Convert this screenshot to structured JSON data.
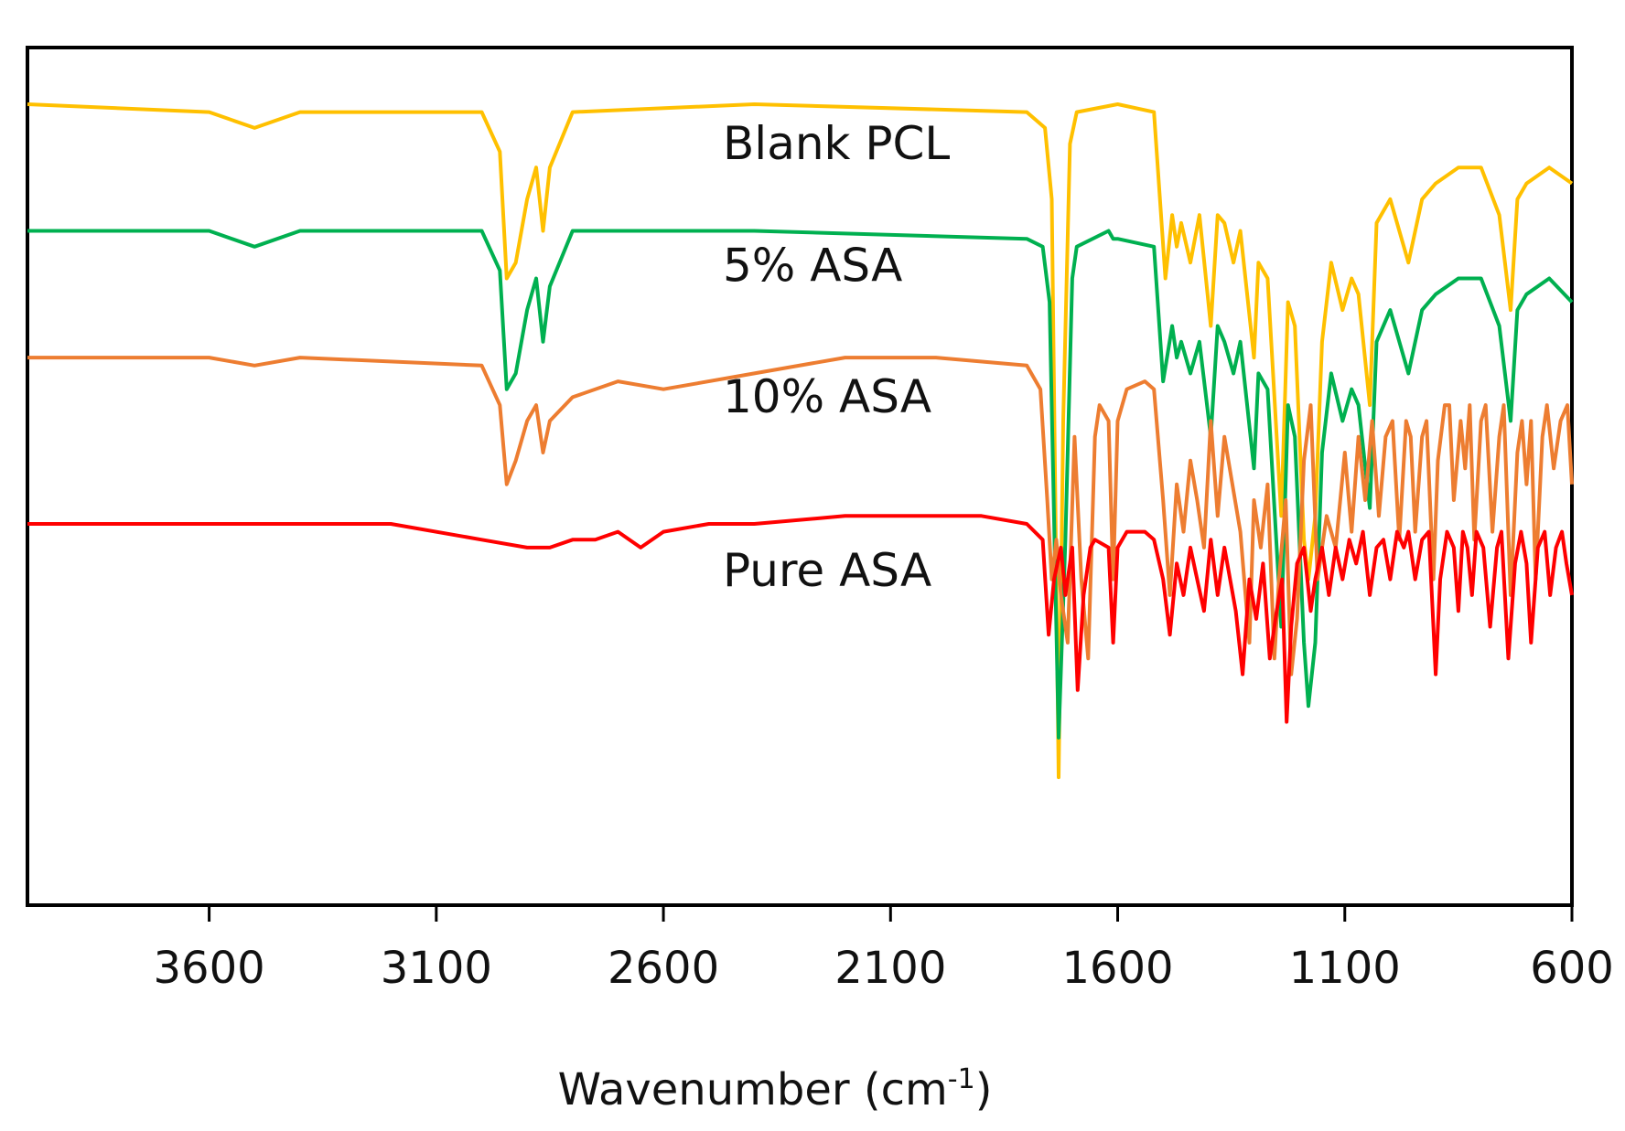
{
  "chart_data": {
    "type": "line",
    "title": "",
    "xlabel": "Wavenumber (cm",
    "xlabel_sup": "-1",
    "xlabel_close": ")",
    "ylabel": "",
    "xlim": [
      4000,
      600
    ],
    "x_reversed": true,
    "y_ticks_shown": false,
    "grid": false,
    "x_ticks": [
      3600,
      3100,
      2600,
      2100,
      1600,
      1100,
      600
    ],
    "legend": "inline labels beside each trace",
    "series": [
      {
        "name": "Blank PCL",
        "color": "#FFC000",
        "baseline": 100,
        "points": [
          [
            4000,
            100
          ],
          [
            3600,
            99
          ],
          [
            3500,
            97
          ],
          [
            3400,
            99
          ],
          [
            3000,
            99
          ],
          [
            2960,
            94
          ],
          [
            2945,
            78
          ],
          [
            2925,
            80
          ],
          [
            2900,
            88
          ],
          [
            2880,
            92
          ],
          [
            2865,
            84
          ],
          [
            2850,
            92
          ],
          [
            2800,
            99
          ],
          [
            2400,
            100
          ],
          [
            1800,
            99
          ],
          [
            1760,
            97
          ],
          [
            1745,
            88
          ],
          [
            1730,
            15
          ],
          [
            1720,
            60
          ],
          [
            1705,
            95
          ],
          [
            1690,
            99
          ],
          [
            1600,
            100
          ],
          [
            1520,
            99
          ],
          [
            1495,
            78
          ],
          [
            1480,
            86
          ],
          [
            1470,
            82
          ],
          [
            1460,
            85
          ],
          [
            1440,
            80
          ],
          [
            1420,
            86
          ],
          [
            1395,
            72
          ],
          [
            1380,
            86
          ],
          [
            1365,
            85
          ],
          [
            1345,
            80
          ],
          [
            1330,
            84
          ],
          [
            1300,
            68
          ],
          [
            1290,
            80
          ],
          [
            1270,
            78
          ],
          [
            1240,
            48
          ],
          [
            1225,
            75
          ],
          [
            1210,
            72
          ],
          [
            1190,
            45
          ],
          [
            1180,
            40
          ],
          [
            1165,
            48
          ],
          [
            1150,
            70
          ],
          [
            1130,
            80
          ],
          [
            1105,
            74
          ],
          [
            1085,
            78
          ],
          [
            1070,
            76
          ],
          [
            1045,
            62
          ],
          [
            1030,
            85
          ],
          [
            1000,
            88
          ],
          [
            960,
            80
          ],
          [
            930,
            88
          ],
          [
            900,
            90
          ],
          [
            850,
            92
          ],
          [
            800,
            92
          ],
          [
            760,
            86
          ],
          [
            735,
            74
          ],
          [
            720,
            88
          ],
          [
            700,
            90
          ],
          [
            650,
            92
          ],
          [
            600,
            90
          ]
        ]
      },
      {
        "name": "5% ASA",
        "color": "#00B050",
        "baseline": 84,
        "points": [
          [
            4000,
            84
          ],
          [
            3600,
            84
          ],
          [
            3500,
            82
          ],
          [
            3400,
            84
          ],
          [
            3000,
            84
          ],
          [
            2960,
            79
          ],
          [
            2945,
            64
          ],
          [
            2925,
            66
          ],
          [
            2900,
            74
          ],
          [
            2880,
            78
          ],
          [
            2865,
            70
          ],
          [
            2850,
            77
          ],
          [
            2800,
            84
          ],
          [
            2400,
            84
          ],
          [
            1800,
            83
          ],
          [
            1765,
            82
          ],
          [
            1750,
            75
          ],
          [
            1730,
            20
          ],
          [
            1715,
            45
          ],
          [
            1700,
            78
          ],
          [
            1690,
            82
          ],
          [
            1620,
            84
          ],
          [
            1610,
            83
          ],
          [
            1600,
            83
          ],
          [
            1520,
            82
          ],
          [
            1500,
            65
          ],
          [
            1480,
            72
          ],
          [
            1470,
            68
          ],
          [
            1460,
            70
          ],
          [
            1440,
            66
          ],
          [
            1420,
            70
          ],
          [
            1395,
            58
          ],
          [
            1380,
            72
          ],
          [
            1365,
            70
          ],
          [
            1345,
            66
          ],
          [
            1330,
            70
          ],
          [
            1300,
            54
          ],
          [
            1290,
            66
          ],
          [
            1270,
            64
          ],
          [
            1240,
            34
          ],
          [
            1225,
            62
          ],
          [
            1210,
            58
          ],
          [
            1190,
            32
          ],
          [
            1180,
            24
          ],
          [
            1165,
            32
          ],
          [
            1150,
            56
          ],
          [
            1130,
            66
          ],
          [
            1105,
            60
          ],
          [
            1085,
            64
          ],
          [
            1070,
            62
          ],
          [
            1045,
            49
          ],
          [
            1030,
            70
          ],
          [
            1000,
            74
          ],
          [
            960,
            66
          ],
          [
            930,
            74
          ],
          [
            900,
            76
          ],
          [
            850,
            78
          ],
          [
            800,
            78
          ],
          [
            760,
            72
          ],
          [
            735,
            60
          ],
          [
            720,
            74
          ],
          [
            700,
            76
          ],
          [
            650,
            78
          ],
          [
            600,
            75
          ]
        ]
      },
      {
        "name": "10% ASA",
        "color": "#ED7D31",
        "baseline": 68,
        "points": [
          [
            4000,
            68
          ],
          [
            3600,
            68
          ],
          [
            3500,
            67
          ],
          [
            3400,
            68
          ],
          [
            3000,
            67
          ],
          [
            2960,
            62
          ],
          [
            2945,
            52
          ],
          [
            2925,
            55
          ],
          [
            2900,
            60
          ],
          [
            2880,
            62
          ],
          [
            2865,
            56
          ],
          [
            2850,
            60
          ],
          [
            2800,
            63
          ],
          [
            2700,
            65
          ],
          [
            2600,
            64
          ],
          [
            2400,
            66
          ],
          [
            2200,
            68
          ],
          [
            2000,
            68
          ],
          [
            1800,
            67
          ],
          [
            1770,
            64
          ],
          [
            1755,
            50
          ],
          [
            1745,
            40
          ],
          [
            1735,
            45
          ],
          [
            1725,
            38
          ],
          [
            1710,
            32
          ],
          [
            1695,
            58
          ],
          [
            1680,
            40
          ],
          [
            1665,
            30
          ],
          [
            1650,
            58
          ],
          [
            1640,
            62
          ],
          [
            1620,
            60
          ],
          [
            1610,
            40
          ],
          [
            1600,
            60
          ],
          [
            1580,
            64
          ],
          [
            1540,
            65
          ],
          [
            1520,
            64
          ],
          [
            1500,
            50
          ],
          [
            1485,
            38
          ],
          [
            1470,
            52
          ],
          [
            1455,
            46
          ],
          [
            1440,
            55
          ],
          [
            1425,
            50
          ],
          [
            1410,
            44
          ],
          [
            1395,
            60
          ],
          [
            1380,
            48
          ],
          [
            1365,
            58
          ],
          [
            1330,
            46
          ],
          [
            1310,
            32
          ],
          [
            1300,
            50
          ],
          [
            1285,
            44
          ],
          [
            1270,
            52
          ],
          [
            1255,
            30
          ],
          [
            1245,
            40
          ],
          [
            1230,
            50
          ],
          [
            1218,
            28
          ],
          [
            1205,
            35
          ],
          [
            1190,
            55
          ],
          [
            1175,
            62
          ],
          [
            1160,
            40
          ],
          [
            1140,
            48
          ],
          [
            1120,
            44
          ],
          [
            1100,
            56
          ],
          [
            1085,
            46
          ],
          [
            1070,
            58
          ],
          [
            1055,
            50
          ],
          [
            1040,
            60
          ],
          [
            1025,
            48
          ],
          [
            1010,
            58
          ],
          [
            995,
            60
          ],
          [
            980,
            45
          ],
          [
            965,
            60
          ],
          [
            955,
            58
          ],
          [
            945,
            46
          ],
          [
            930,
            58
          ],
          [
            920,
            60
          ],
          [
            905,
            40
          ],
          [
            895,
            55
          ],
          [
            880,
            62
          ],
          [
            870,
            62
          ],
          [
            860,
            50
          ],
          [
            845,
            60
          ],
          [
            835,
            54
          ],
          [
            825,
            62
          ],
          [
            815,
            45
          ],
          [
            800,
            60
          ],
          [
            790,
            62
          ],
          [
            775,
            46
          ],
          [
            760,
            58
          ],
          [
            750,
            62
          ],
          [
            735,
            38
          ],
          [
            720,
            56
          ],
          [
            710,
            60
          ],
          [
            700,
            52
          ],
          [
            690,
            60
          ],
          [
            680,
            40
          ],
          [
            665,
            58
          ],
          [
            655,
            62
          ],
          [
            640,
            54
          ],
          [
            625,
            60
          ],
          [
            610,
            62
          ],
          [
            600,
            52
          ]
        ]
      },
      {
        "name": "Pure ASA",
        "color": "#FF0000",
        "baseline": 47,
        "points": [
          [
            4000,
            47
          ],
          [
            3600,
            47
          ],
          [
            3400,
            47
          ],
          [
            3200,
            47
          ],
          [
            3000,
            45
          ],
          [
            2900,
            44
          ],
          [
            2850,
            44
          ],
          [
            2800,
            45
          ],
          [
            2750,
            45
          ],
          [
            2700,
            46
          ],
          [
            2650,
            44
          ],
          [
            2600,
            46
          ],
          [
            2500,
            47
          ],
          [
            2400,
            47
          ],
          [
            2200,
            48
          ],
          [
            2100,
            48
          ],
          [
            2000,
            48
          ],
          [
            1900,
            48
          ],
          [
            1800,
            47
          ],
          [
            1765,
            45
          ],
          [
            1752,
            33
          ],
          [
            1740,
            40
          ],
          [
            1725,
            44
          ],
          [
            1715,
            38
          ],
          [
            1700,
            44
          ],
          [
            1688,
            26
          ],
          [
            1675,
            38
          ],
          [
            1660,
            44
          ],
          [
            1650,
            45
          ],
          [
            1620,
            44
          ],
          [
            1610,
            32
          ],
          [
            1600,
            44
          ],
          [
            1580,
            46
          ],
          [
            1540,
            46
          ],
          [
            1520,
            45
          ],
          [
            1500,
            40
          ],
          [
            1485,
            33
          ],
          [
            1470,
            42
          ],
          [
            1455,
            38
          ],
          [
            1440,
            44
          ],
          [
            1425,
            40
          ],
          [
            1410,
            36
          ],
          [
            1395,
            45
          ],
          [
            1380,
            38
          ],
          [
            1365,
            44
          ],
          [
            1340,
            36
          ],
          [
            1325,
            28
          ],
          [
            1310,
            40
          ],
          [
            1295,
            35
          ],
          [
            1280,
            42
          ],
          [
            1265,
            30
          ],
          [
            1250,
            36
          ],
          [
            1238,
            40
          ],
          [
            1228,
            22
          ],
          [
            1218,
            34
          ],
          [
            1205,
            42
          ],
          [
            1190,
            44
          ],
          [
            1175,
            36
          ],
          [
            1165,
            40
          ],
          [
            1150,
            44
          ],
          [
            1135,
            38
          ],
          [
            1120,
            44
          ],
          [
            1105,
            40
          ],
          [
            1090,
            45
          ],
          [
            1075,
            42
          ],
          [
            1060,
            46
          ],
          [
            1045,
            38
          ],
          [
            1030,
            44
          ],
          [
            1015,
            45
          ],
          [
            1000,
            40
          ],
          [
            985,
            46
          ],
          [
            970,
            44
          ],
          [
            960,
            46
          ],
          [
            945,
            40
          ],
          [
            930,
            45
          ],
          [
            915,
            46
          ],
          [
            900,
            28
          ],
          [
            890,
            40
          ],
          [
            875,
            46
          ],
          [
            860,
            44
          ],
          [
            850,
            36
          ],
          [
            840,
            46
          ],
          [
            830,
            44
          ],
          [
            820,
            38
          ],
          [
            810,
            46
          ],
          [
            795,
            44
          ],
          [
            780,
            34
          ],
          [
            765,
            44
          ],
          [
            755,
            46
          ],
          [
            740,
            30
          ],
          [
            725,
            42
          ],
          [
            712,
            46
          ],
          [
            700,
            42
          ],
          [
            690,
            32
          ],
          [
            675,
            44
          ],
          [
            660,
            46
          ],
          [
            648,
            38
          ],
          [
            635,
            44
          ],
          [
            622,
            46
          ],
          [
            612,
            42
          ],
          [
            600,
            38
          ]
        ]
      }
    ]
  }
}
